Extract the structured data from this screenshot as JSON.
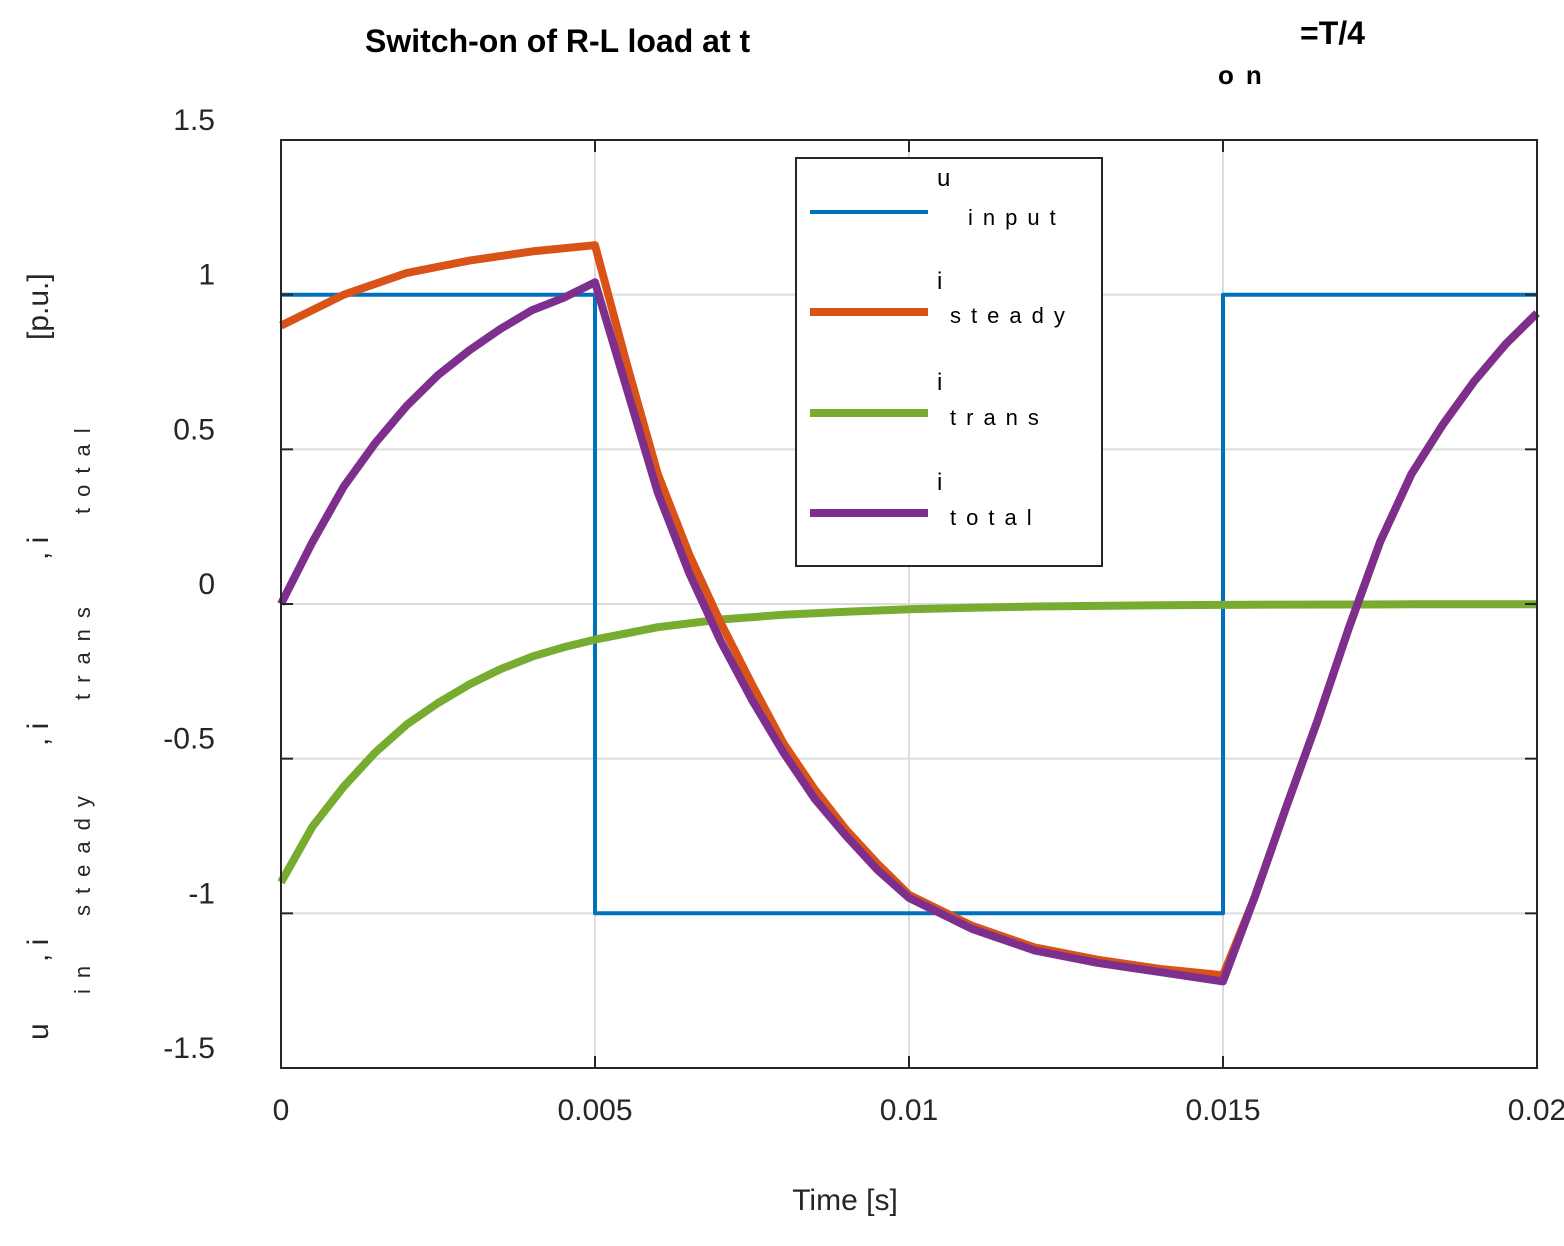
{
  "chart_data": {
    "type": "line",
    "title": "Switch-on of R-L load at t",
    "title_subscript": "on",
    "title_suffix": "=T/4",
    "xlabel": "Time [s]",
    "ylabel_parts": {
      "u": "u",
      "u_sub": "in",
      "sep1": ", i",
      "i1_sub": "steady",
      "sep2": ", i",
      "i2_sub": "trans",
      "sep3": ", i",
      "i3_sub": "total",
      "unit": "[p.u.]"
    },
    "xlim": [
      0,
      0.02
    ],
    "ylim": [
      -1.5,
      1.5
    ],
    "xticks": [
      0,
      0.005,
      0.01,
      0.015,
      0.02
    ],
    "xtick_labels": [
      "0",
      "0.005",
      "0.01",
      "0.015",
      "0.02"
    ],
    "yticks": [
      -1.5,
      -1,
      -0.5,
      0,
      0.5,
      1,
      1.5
    ],
    "ytick_labels": [
      "-1.5",
      "-1",
      "-0.5",
      "0",
      "0.5",
      "1",
      "1.5"
    ],
    "grid": true,
    "legend_position": "top-center",
    "series": [
      {
        "name": "u",
        "name_sub": "input",
        "color": "#0072BD",
        "x": [
          0,
          0.005,
          0.005,
          0.015,
          0.015,
          0.02
        ],
        "y": [
          1,
          1,
          -1,
          -1,
          1,
          1
        ]
      },
      {
        "name": "i",
        "name_sub": "steady",
        "color": "#D95319",
        "x": [
          0,
          0.001,
          0.002,
          0.003,
          0.004,
          0.005,
          0.0055,
          0.006,
          0.0065,
          0.007,
          0.0075,
          0.008,
          0.0085,
          0.009,
          0.0095,
          0.01,
          0.011,
          0.012,
          0.013,
          0.014,
          0.015,
          0.0155,
          0.016,
          0.0165,
          0.017,
          0.0175,
          0.018,
          0.0185,
          0.019,
          0.0195,
          0.02
        ],
        "y": [
          0.9,
          1.0,
          1.07,
          1.11,
          1.14,
          1.16,
          0.78,
          0.42,
          0.16,
          -0.06,
          -0.26,
          -0.45,
          -0.6,
          -0.73,
          -0.84,
          -0.94,
          -1.04,
          -1.11,
          -1.15,
          -1.18,
          -1.2,
          -0.95,
          -0.66,
          -0.38,
          -0.08,
          0.2,
          0.42,
          0.58,
          0.72,
          0.84,
          0.94
        ]
      },
      {
        "name": "i",
        "name_sub": "trans",
        "color": "#77AC30",
        "x": [
          0,
          0.0005,
          0.001,
          0.0015,
          0.002,
          0.0025,
          0.003,
          0.0035,
          0.004,
          0.0045,
          0.005,
          0.006,
          0.007,
          0.008,
          0.009,
          0.01,
          0.011,
          0.012,
          0.013,
          0.014,
          0.015,
          0.016,
          0.017,
          0.018,
          0.019,
          0.02
        ],
        "y": [
          -0.9,
          -0.72,
          -0.59,
          -0.48,
          -0.39,
          -0.32,
          -0.26,
          -0.21,
          -0.17,
          -0.14,
          -0.115,
          -0.075,
          -0.05,
          -0.035,
          -0.025,
          -0.017,
          -0.012,
          -0.008,
          -0.006,
          -0.004,
          -0.003,
          -0.002,
          -0.0015,
          -0.001,
          -0.001,
          -0.001
        ]
      },
      {
        "name": "i",
        "name_sub": "total",
        "color": "#7E2F8E",
        "x": [
          0,
          0.0005,
          0.001,
          0.0015,
          0.002,
          0.0025,
          0.003,
          0.0035,
          0.004,
          0.0045,
          0.005,
          0.0055,
          0.006,
          0.0065,
          0.007,
          0.0075,
          0.008,
          0.0085,
          0.009,
          0.0095,
          0.01,
          0.011,
          0.012,
          0.013,
          0.014,
          0.015,
          0.0155,
          0.016,
          0.0165,
          0.017,
          0.0175,
          0.018,
          0.0185,
          0.019,
          0.0195,
          0.02
        ],
        "y": [
          0.0,
          0.2,
          0.38,
          0.52,
          0.64,
          0.74,
          0.82,
          0.89,
          0.95,
          0.99,
          1.04,
          0.7,
          0.36,
          0.1,
          -0.12,
          -0.31,
          -0.48,
          -0.63,
          -0.75,
          -0.86,
          -0.95,
          -1.05,
          -1.12,
          -1.16,
          -1.19,
          -1.22,
          -0.95,
          -0.66,
          -0.38,
          -0.08,
          0.2,
          0.42,
          0.58,
          0.72,
          0.84,
          0.94
        ]
      }
    ]
  }
}
